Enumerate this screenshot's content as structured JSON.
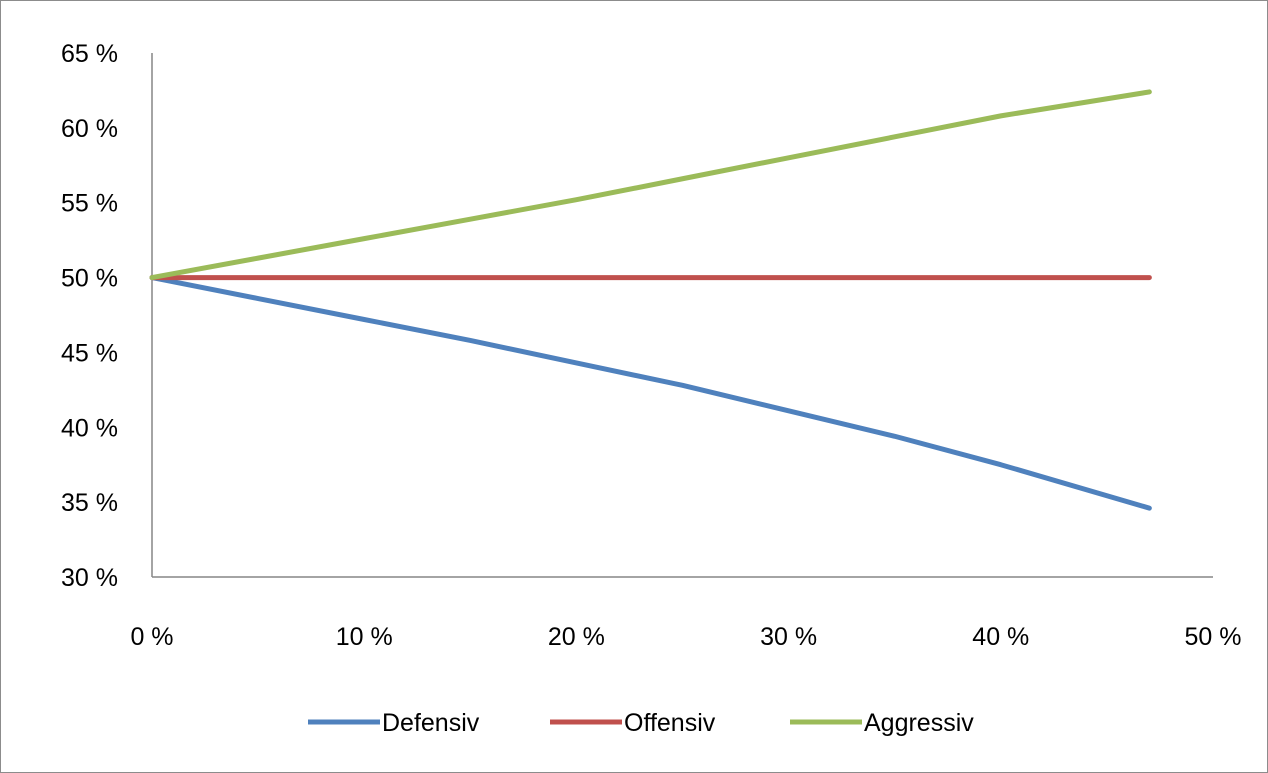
{
  "chart_data": {
    "type": "line",
    "title": "",
    "xlabel": "",
    "ylabel": "",
    "x": [
      0,
      0.05,
      0.1,
      0.15,
      0.2,
      0.25,
      0.3,
      0.35,
      0.4,
      0.47
    ],
    "xlim": [
      0,
      0.5
    ],
    "ylim": [
      0.3,
      0.65
    ],
    "x_ticks": [
      0,
      0.1,
      0.2,
      0.3,
      0.4,
      0.5
    ],
    "y_ticks": [
      0.3,
      0.35,
      0.4,
      0.45,
      0.5,
      0.55,
      0.6,
      0.65
    ],
    "x_tick_labels": [
      "0 %",
      "10 %",
      "20 %",
      "30 %",
      "40 %",
      "50 %"
    ],
    "y_tick_labels": [
      "30 %",
      "35 %",
      "40 %",
      "45 %",
      "50 %",
      "55 %",
      "60 %",
      "65 %"
    ],
    "grid": false,
    "legend_position": "bottom",
    "series": [
      {
        "name": "Defensiv",
        "color": "#4f81bd",
        "values": [
          0.5,
          0.486,
          0.472,
          0.458,
          0.443,
          0.428,
          0.411,
          0.394,
          0.375,
          0.346
        ]
      },
      {
        "name": "Offensiv",
        "color": "#c0504d",
        "values": [
          0.5,
          0.5,
          0.5,
          0.5,
          0.5,
          0.5,
          0.5,
          0.5,
          0.5,
          0.5
        ]
      },
      {
        "name": "Aggressiv",
        "color": "#9bbb59",
        "values": [
          0.5,
          0.513,
          0.526,
          0.539,
          0.552,
          0.566,
          0.58,
          0.594,
          0.608,
          0.624
        ]
      }
    ]
  }
}
